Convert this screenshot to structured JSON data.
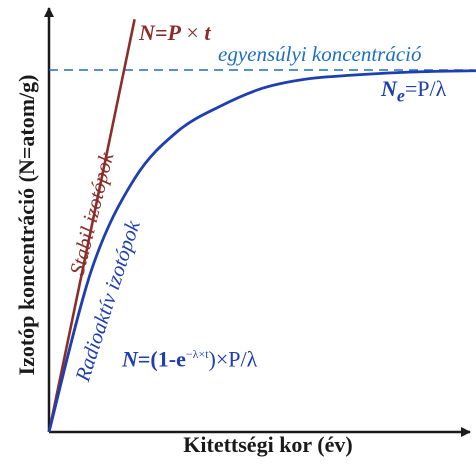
{
  "chart_data": {
    "type": "line",
    "xlabel": "Kitettségi kor (év)",
    "ylabel": "Izotóp koncentráció (N=atom/g)",
    "colors": {
      "stable": "#8b2e2a",
      "radioactive": "#1f3fb0",
      "equilibrium": "#1f6fc0",
      "axis": "#1a1a1a"
    },
    "series": [
      {
        "name": "Stabil izotópok",
        "color": "#8b2e2a",
        "function": "linear",
        "x": [
          0,
          0.2
        ],
        "y": [
          0,
          1.14
        ]
      },
      {
        "name": "Radioaktív izotópok",
        "color": "#1f3fb0",
        "function": "saturating-exponential",
        "x": [
          0,
          0.1,
          0.2,
          0.3,
          0.4,
          0.5,
          0.6,
          0.7,
          0.8,
          0.9,
          1.0
        ],
        "y": [
          0,
          0.45,
          0.7,
          0.83,
          0.9,
          0.95,
          0.975,
          0.985,
          0.992,
          0.996,
          0.998
        ]
      }
    ],
    "reference_lines": [
      {
        "label": "egyensúlyi koncentráció",
        "y": 1.0,
        "style": "dashed",
        "color": "#1f6fc0"
      }
    ],
    "annotations": {
      "stable_formula": {
        "n": "N",
        "eq": "=",
        "p": "P",
        "times": " × ",
        "t": "t"
      },
      "ne_formula": {
        "n": "N",
        "sub": "e",
        "rest": "=P/λ"
      },
      "radio_formula": {
        "lead": "N",
        "eq": "=(1-e",
        "exp": "−λ×t",
        "tail": ")×P/λ"
      }
    },
    "grid": false
  }
}
